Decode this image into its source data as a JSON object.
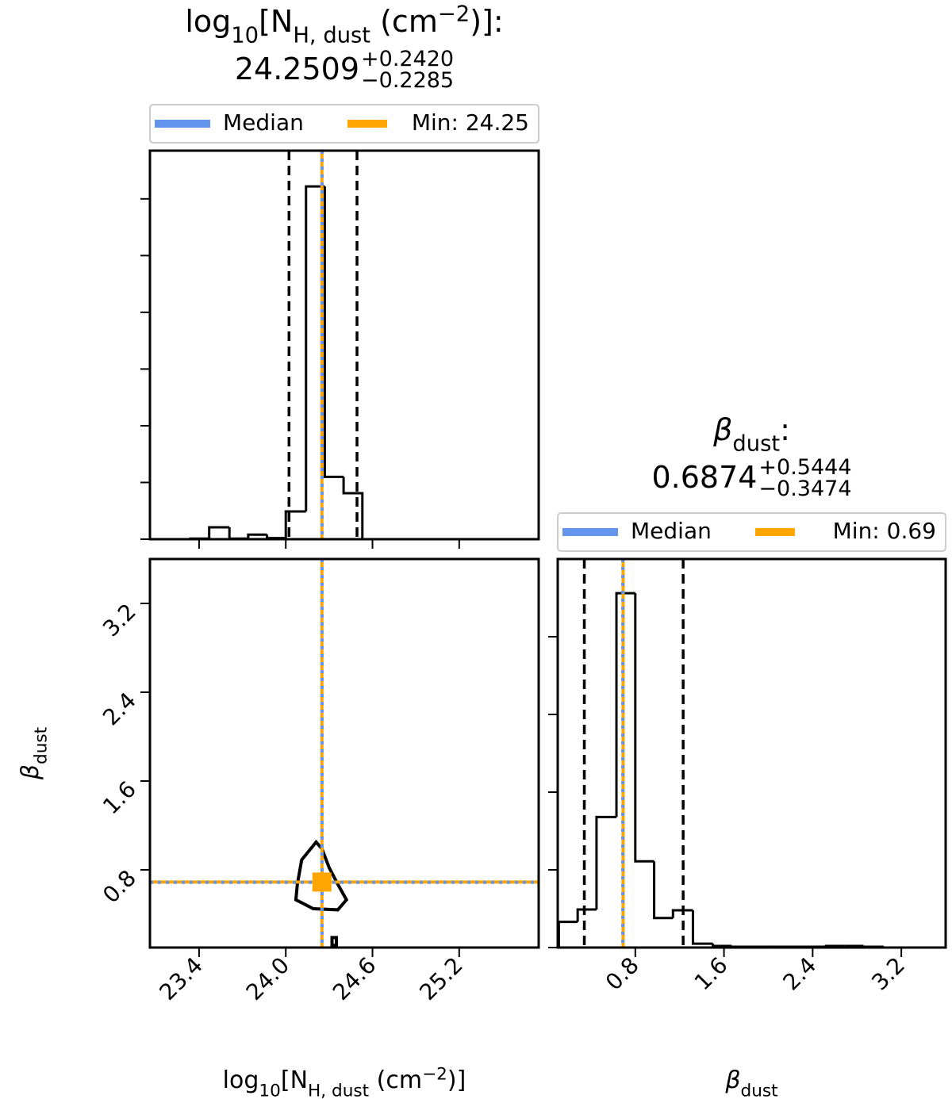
{
  "chart_data": {
    "type": "corner",
    "median_name": "Median",
    "median_color": "#6495ed",
    "min_color": "#ffa500",
    "params": [
      {
        "label": [
          "log",
          "10",
          "[N",
          "H, dust",
          " (cm",
          "−2",
          ")]"
        ],
        "title_end": ":",
        "median": 24.2509,
        "upper": {
          "value": 0.242,
          "label": "+0.2420"
        },
        "lower": {
          "value": -0.2285,
          "label": "−0.2285"
        },
        "quantiles": [
          24.0224,
          24.4929
        ],
        "min": {
          "value": 24.25,
          "label": "Min: 24.25"
        },
        "lim": [
          23.06,
          25.75
        ],
        "ticks": [
          23.4,
          {
            "value": 24,
            "label": "24.0"
          },
          24.6,
          25.2
        ],
        "bins": [
          23.2,
          23.34,
          23.47,
          23.61,
          23.74,
          23.87,
          24.0,
          24.14,
          24.27,
          24.4,
          24.53
        ],
        "counts": [
          0,
          0.01,
          0.21,
          0.01,
          0.08,
          0.02,
          0.49,
          6.22,
          1.1,
          0.81
        ],
        "hist_ylim": [
          0,
          6.85
        ],
        "hist_yticks": [
          0,
          1,
          2,
          3,
          4,
          5,
          6
        ]
      },
      {
        "label": [
          "β",
          "dust"
        ],
        "title_end": ":",
        "median": 0.6874,
        "upper": {
          "value": 0.5444,
          "label": "+0.5444"
        },
        "lower": {
          "value": -0.3474,
          "label": "−0.3474"
        },
        "quantiles": [
          0.34,
          1.2318
        ],
        "min": {
          "value": 0.69,
          "label": "Min: 0.69"
        },
        "lim": [
          0.1,
          3.6
        ],
        "ticks": [
          0.8,
          1.6,
          2.4,
          3.2
        ],
        "bins": [
          0.11,
          0.28,
          0.45,
          0.63,
          0.8,
          0.97,
          1.14,
          1.32,
          1.5,
          1.67,
          1.84,
          2.01,
          2.18,
          2.35,
          2.52,
          2.69,
          2.86,
          3.03
        ],
        "counts": [
          0.33,
          0.49,
          1.68,
          4.56,
          1.11,
          0.38,
          0.48,
          0.05,
          0.02,
          0.01,
          0.01,
          0.01,
          0.01,
          0.01,
          0.02,
          0.02,
          0.01
        ],
        "hist_ylim": [
          0,
          5
        ],
        "hist_yticks": [
          0,
          1,
          2,
          3,
          4
        ]
      }
    ],
    "contours": [
      [
        [
          24.21,
          1.05
        ],
        [
          24.11,
          0.89
        ],
        [
          24.08,
          0.67
        ],
        [
          24.07,
          0.53
        ],
        [
          24.19,
          0.45
        ],
        [
          24.36,
          0.44
        ],
        [
          24.42,
          0.53
        ],
        [
          24.36,
          0.67
        ],
        [
          24.3,
          0.82
        ],
        [
          24.25,
          0.99
        ]
      ],
      [
        [
          24.32,
          0.12
        ],
        [
          24.32,
          0.19
        ],
        [
          24.35,
          0.19
        ],
        [
          24.35,
          0.12
        ]
      ]
    ]
  }
}
